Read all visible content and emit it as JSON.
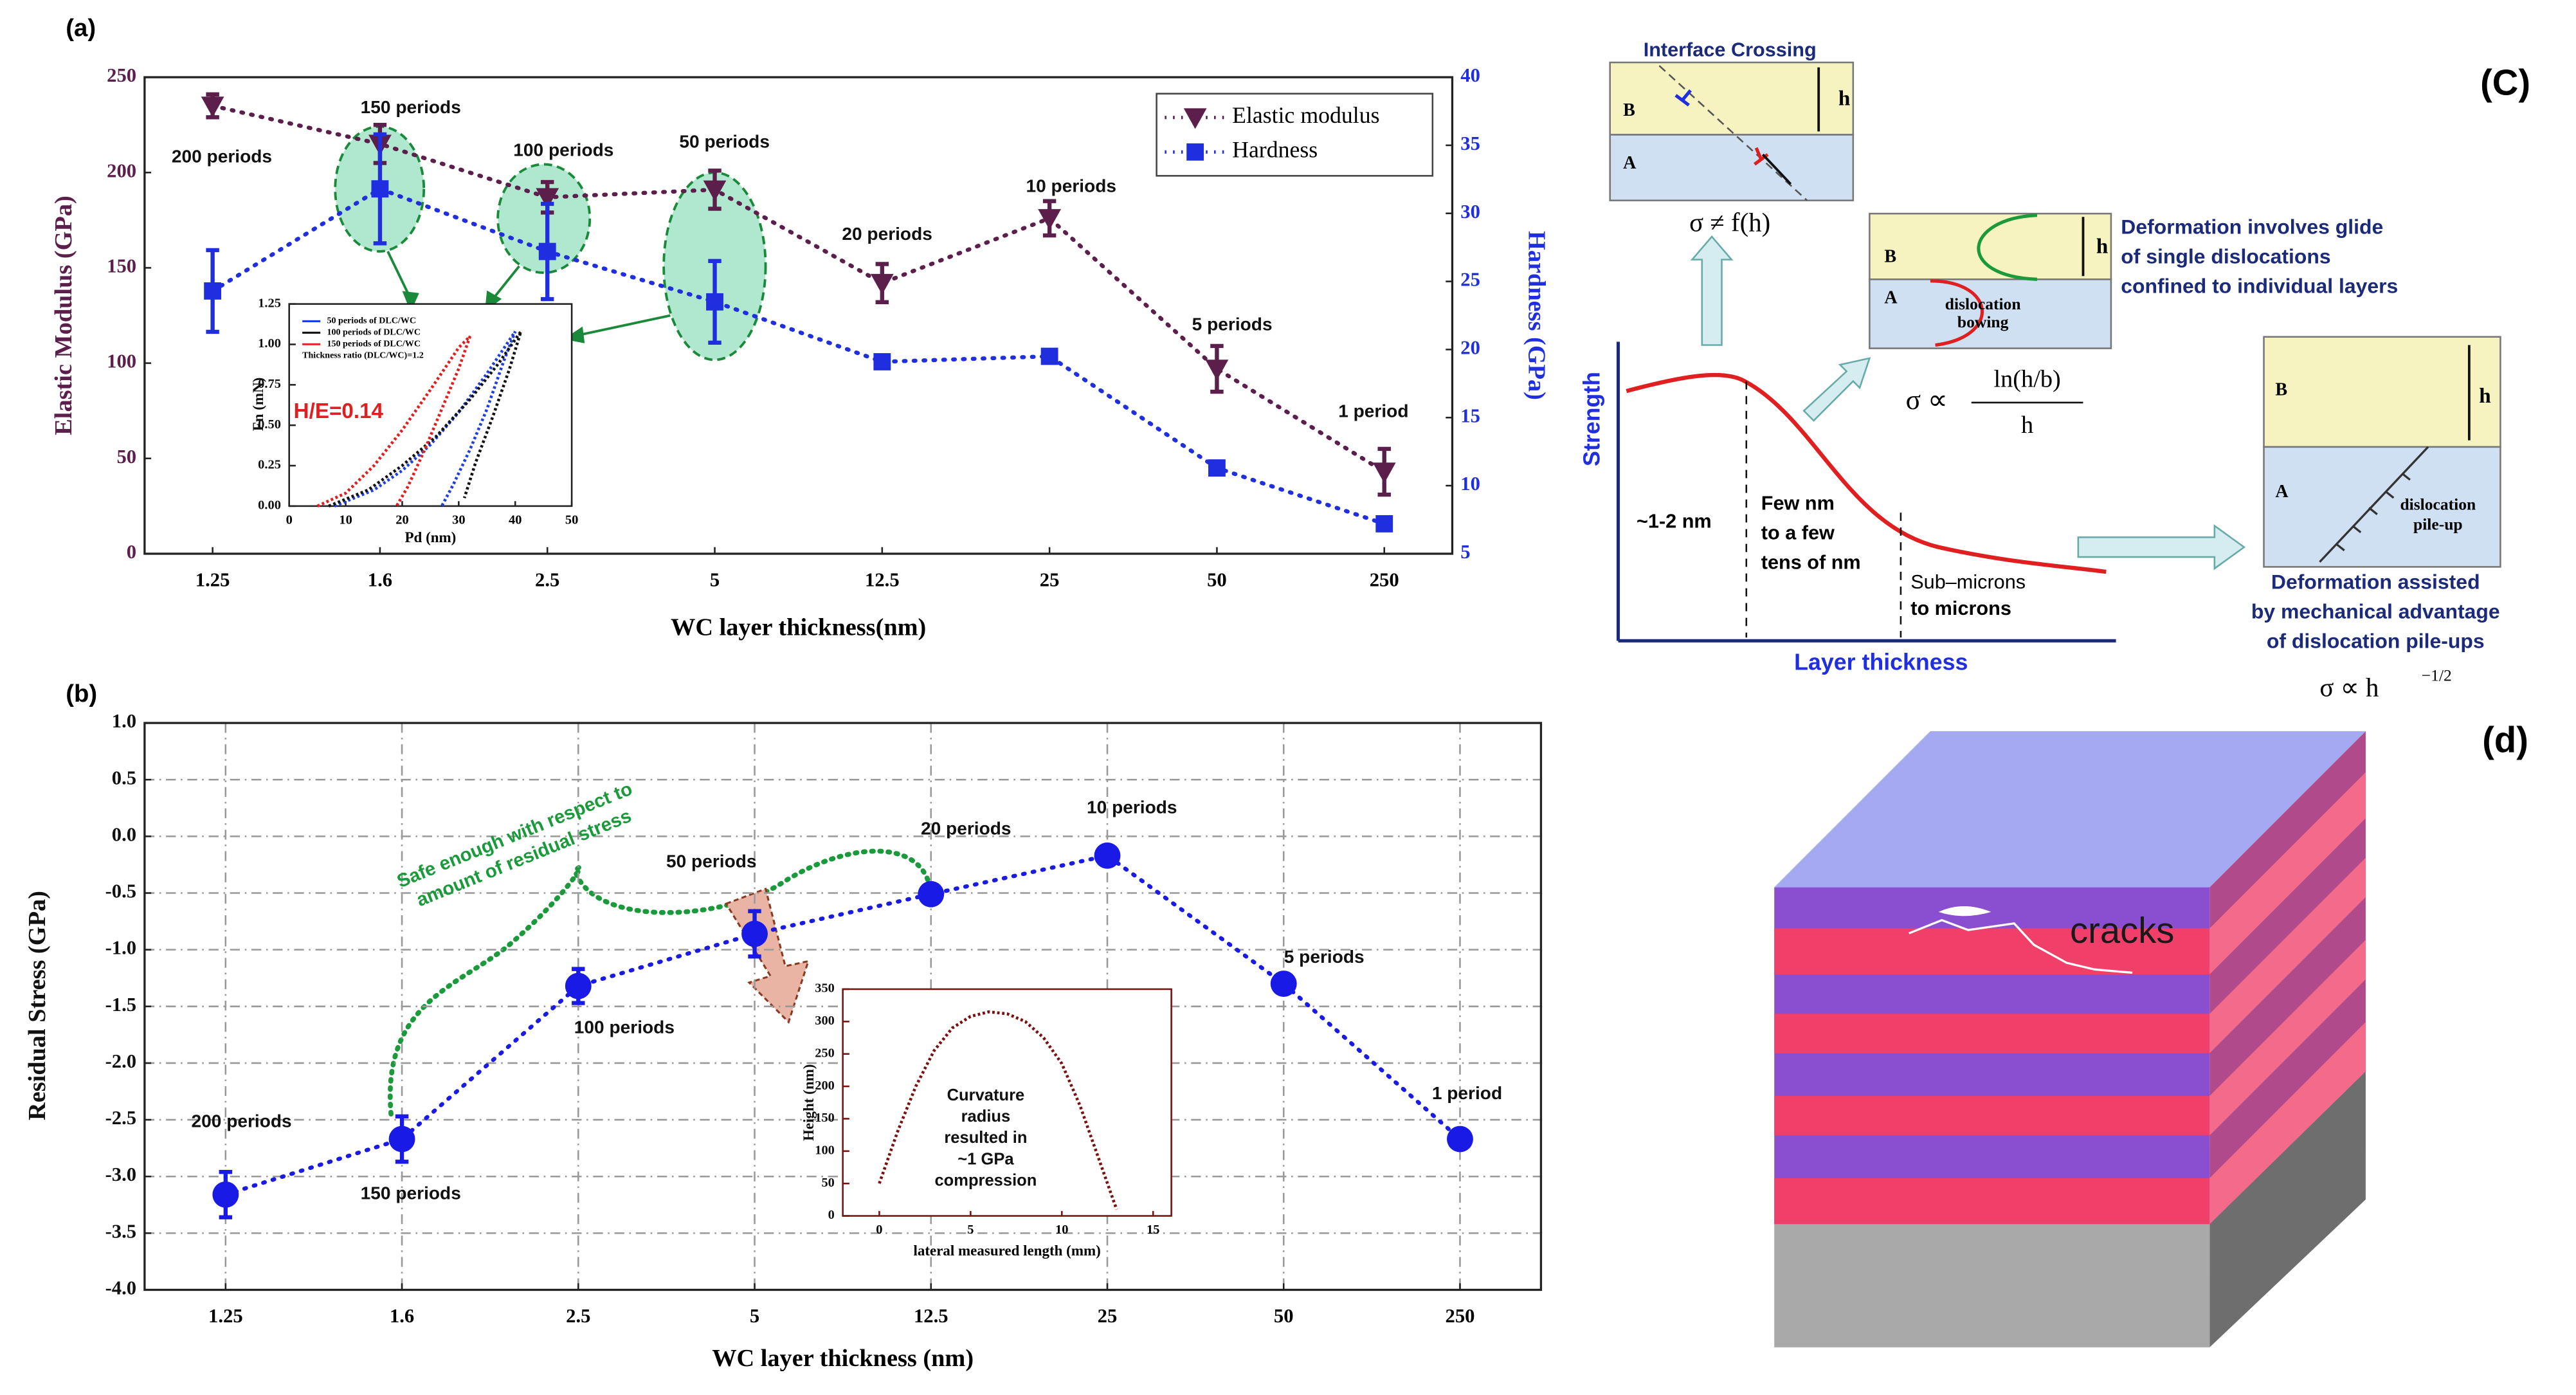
{
  "chart_data": [
    {
      "type": "line",
      "panel_label": "(a)",
      "x_label": "WC layer thickness(nm)",
      "y_label": "Elastic Modulus (GPa)",
      "y2_label": "Hardness (GPa)",
      "categories": [
        "1.25",
        "1.6",
        "2.5",
        "5",
        "12.5",
        "25",
        "50",
        "250"
      ],
      "ylim": [
        0,
        250
      ],
      "yticks": [
        0,
        50,
        100,
        150,
        200,
        250
      ],
      "y2lim": [
        5,
        40
      ],
      "y2ticks": [
        5,
        10,
        15,
        20,
        25,
        30,
        35,
        40
      ],
      "grid": false,
      "legend": "upper right",
      "series": [
        {
          "name": "Elastic modulus",
          "color": "#5c1e4a",
          "marker": "triangle-down",
          "values": [
            235,
            215,
            187,
            191,
            142,
            176,
            97,
            43
          ],
          "errors": [
            6,
            10,
            8,
            10,
            10,
            9,
            12,
            12
          ]
        },
        {
          "name": "Hardness",
          "color": "#1f2fe0",
          "marker": "square",
          "axis": "y2",
          "values": [
            24.3,
            31.8,
            27.2,
            23.5,
            19.1,
            19.5,
            11.3,
            7.2
          ],
          "errors": [
            3,
            4,
            3.5,
            3,
            0,
            0,
            0,
            0
          ]
        }
      ],
      "annotations": [
        "200 periods",
        "150 periods",
        "100 periods",
        "50 periods",
        "20 periods",
        "10 periods",
        "5 periods",
        "1 period"
      ]
    },
    {
      "type": "line",
      "x_label": "Pd (nm)",
      "y_label": "Fn (mN)",
      "xlim": [
        0,
        50
      ],
      "xticks": [
        0,
        10,
        20,
        30,
        40,
        50
      ],
      "ylim": [
        0,
        1.25
      ],
      "yticks": [
        {
          "value": 0,
          "label": "0.00"
        },
        {
          "value": 0.25,
          "label": "0.25"
        },
        {
          "value": 0.5,
          "label": "0.50"
        },
        {
          "value": 0.75,
          "label": "0.75"
        },
        {
          "value": 1,
          "label": "1.00"
        },
        {
          "value": 1.25,
          "label": "1.25"
        }
      ],
      "legend": "upper left",
      "legend_note": "Thickness ratio (DLC/WC)=1.2",
      "series": [
        {
          "name": "50 periods of DLC/WC",
          "color": "#1f3fe0",
          "x": [
            8,
            15,
            20,
            25,
            30,
            35,
            40,
            38,
            35,
            32,
            29,
            27
          ],
          "values": [
            0,
            0.1,
            0.22,
            0.38,
            0.58,
            0.82,
            1.08,
            0.9,
            0.6,
            0.35,
            0.13,
            0
          ]
        },
        {
          "name": "100 periods of DLC/WC",
          "color": "#111111",
          "x": [
            7,
            14,
            20,
            26,
            32,
            37,
            41,
            39,
            36,
            33,
            31
          ],
          "values": [
            0,
            0.1,
            0.25,
            0.43,
            0.66,
            0.88,
            1.08,
            0.85,
            0.55,
            0.27,
            0.05
          ]
        },
        {
          "name": "150 periods of DLC/WC",
          "color": "#e02020",
          "x": [
            5,
            10,
            15,
            20,
            25,
            30,
            32,
            30,
            27,
            24,
            21,
            19
          ],
          "values": [
            0,
            0.08,
            0.25,
            0.47,
            0.72,
            0.98,
            1.05,
            0.85,
            0.6,
            0.35,
            0.12,
            0
          ]
        }
      ],
      "annotations": [
        "H/E=0.14"
      ]
    },
    {
      "type": "line",
      "panel_label": "(b)",
      "x_label": "WC layer thickness (nm)",
      "y_label": "Residual Stress (GPa)",
      "categories": [
        "1.25",
        "1.6",
        "2.5",
        "5",
        "12.5",
        "25",
        "50",
        "250"
      ],
      "ylim": [
        -4,
        1
      ],
      "yticks": [
        {
          "value": -4,
          "label": "-4.0"
        },
        -3.5,
        {
          "value": -3,
          "label": "-3.0"
        },
        -2.5,
        {
          "value": -2,
          "label": "-2.0"
        },
        -1.5,
        {
          "value": -1,
          "label": "-1.0"
        },
        -0.5,
        {
          "value": 0,
          "label": "0.0"
        },
        0.5,
        {
          "value": 1,
          "label": "1.0"
        }
      ],
      "grid": true,
      "series": [
        {
          "color": "#1a1ae6",
          "marker": "circle",
          "values": [
            -3.16,
            -2.67,
            -1.32,
            -0.86,
            -0.51,
            -0.17,
            -1.3,
            -2.67
          ],
          "errors": [
            0.2,
            0.2,
            0.15,
            0.2,
            0.08,
            0,
            0,
            0
          ]
        }
      ],
      "annotations": [
        "200 periods",
        "150 periods",
        "100 periods",
        "50 periods",
        "20 periods",
        "10 periods",
        "5 periods",
        "1 period"
      ],
      "note_lines": [
        "Safe enough with respect to",
        "amount of residual stress"
      ]
    },
    {
      "type": "line",
      "x_label": "lateral measured length (mm)",
      "y_label": "Height (nm)",
      "xlim": [
        -2,
        16
      ],
      "xticks": [
        0,
        5,
        10,
        15
      ],
      "ylim": [
        0,
        350
      ],
      "yticks": [
        0,
        50,
        100,
        150,
        200,
        250,
        300,
        350
      ],
      "series": [
        {
          "color": "#7a1010",
          "x": [
            0,
            1,
            2,
            3,
            4,
            5,
            6,
            7,
            8,
            9,
            10,
            11,
            12,
            13
          ],
          "values": [
            50,
            130,
            200,
            255,
            290,
            308,
            315,
            312,
            300,
            275,
            235,
            170,
            90,
            10
          ]
        }
      ],
      "annotations": [
        "Curvature",
        "radius",
        "resulted in",
        "~1 GPa",
        "compression"
      ]
    }
  ],
  "diagram_c": {
    "panel_label": "(C)",
    "interface_title": "Interface Crossing",
    "layer_b": "B",
    "layer_a": "A",
    "h": "h",
    "sigma_crossing": "σ ≠ f(h)",
    "glide_lines": [
      "Deformation involves glide",
      "of single dislocations",
      "confined to individual layers"
    ],
    "bowing_lines": [
      "dislocation",
      "bowing"
    ],
    "sigma_prop": "σ ∝",
    "fraction_num": "ln(h/b)",
    "fraction_den": "h",
    "y_label": "Strength",
    "x_label": "Layer thickness",
    "region1": "~1-2 nm",
    "region2_lines": [
      "Few nm",
      "to a few",
      "tens of nm"
    ],
    "region3_lines": [
      "Sub–microns",
      "to microns"
    ],
    "pileup_lines": [
      "dislocation",
      "pile-up"
    ],
    "assisted_lines": [
      "Deformation assisted",
      "by mechanical advantage",
      "of dislocation pile-ups"
    ],
    "sigma_pileup": "σ ∝ h",
    "sigma_exponent": "−1/2"
  },
  "diagram_d": {
    "panel_label": "(d)",
    "crack_label": "cracks"
  }
}
